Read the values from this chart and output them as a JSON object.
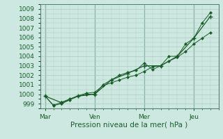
{
  "bg_color": "#cce8e0",
  "grid_color": "#aaccbe",
  "line_color": "#1a5c2a",
  "marker_color": "#1a5c2a",
  "xlabel": "Pression niveau de la mer( hPa )",
  "xlabel_color": "#1a5c2a",
  "tick_color": "#1a5c2a",
  "ylim": [
    998.5,
    1009.5
  ],
  "yticks": [
    999,
    1000,
    1001,
    1002,
    1003,
    1004,
    1005,
    1006,
    1007,
    1008,
    1009
  ],
  "day_labels": [
    "Mar",
    "Ven",
    "Mer",
    "Jeu"
  ],
  "day_positions": [
    0,
    3,
    6,
    9
  ],
  "series1_x": [
    0.0,
    0.5,
    1.0,
    1.5,
    2.0,
    2.5,
    3.0,
    3.5,
    4.0,
    4.5,
    5.0,
    5.5,
    6.0,
    6.5,
    7.0,
    7.5,
    8.0,
    8.5,
    9.0,
    9.5,
    10.0
  ],
  "series1_y": [
    999.8,
    998.85,
    999.15,
    999.5,
    999.85,
    1000.1,
    1000.2,
    1000.9,
    1001.2,
    1001.5,
    1001.8,
    1002.0,
    1002.4,
    1002.9,
    1003.0,
    1003.5,
    1003.9,
    1004.5,
    1005.3,
    1005.9,
    1006.5
  ],
  "series2_x": [
    0.0,
    0.5,
    1.0,
    1.5,
    2.0,
    2.5,
    3.0,
    3.5,
    4.0,
    4.5,
    5.0,
    5.5,
    6.0,
    6.5,
    7.0,
    7.5,
    8.0,
    8.5,
    9.0,
    9.5,
    10.0
  ],
  "series2_y": [
    999.8,
    998.8,
    999.0,
    999.4,
    999.8,
    1000.0,
    1000.0,
    1001.0,
    1001.5,
    1002.0,
    1002.3,
    1002.5,
    1003.3,
    1002.6,
    1003.0,
    1004.0,
    1004.0,
    1005.3,
    1005.9,
    1007.5,
    1008.6
  ],
  "series3_x": [
    0.0,
    1.0,
    2.0,
    3.0,
    4.0,
    5.0,
    6.0,
    7.0,
    8.0,
    9.0,
    10.0
  ],
  "series3_y": [
    999.8,
    999.1,
    999.8,
    1000.0,
    1001.5,
    1002.2,
    1003.0,
    1003.0,
    1004.0,
    1005.9,
    1008.2
  ],
  "xlim": [
    -0.3,
    10.5
  ],
  "vline_positions": [
    0.0,
    3.0,
    6.0,
    9.0
  ]
}
